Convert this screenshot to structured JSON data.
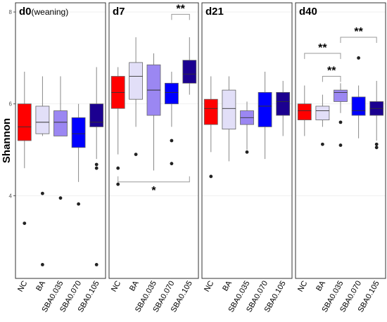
{
  "chart_data": {
    "type": "boxplot",
    "ylabel": "Shannon",
    "ylim": [
      2.2,
      8.2
    ],
    "yticks": [
      4,
      6,
      8
    ],
    "categories": [
      "NC",
      "BA",
      "SBA0.035",
      "SBA0.070",
      "SBA0.105"
    ],
    "colors": {
      "NC": "#ff0000",
      "BA": "#e2dff8",
      "SBA0.035": "#9b87f2",
      "SBA0.070": "#0000ff",
      "SBA0.105": "#1b0090"
    },
    "panels": [
      {
        "title": "d0",
        "subtitle": "(weaning)",
        "boxes": [
          {
            "group": "NC",
            "min": 4.6,
            "q1": 5.2,
            "median": 5.5,
            "q3": 6.0,
            "max": 6.7,
            "outliers": [
              3.4
            ]
          },
          {
            "group": "BA",
            "min": 5.3,
            "q1": 5.35,
            "median": 5.6,
            "q3": 5.95,
            "max": 6.6,
            "outliers": [
              4.05,
              2.5
            ]
          },
          {
            "group": "SBA0.035",
            "min": 5.3,
            "q1": 5.3,
            "median": 5.6,
            "q3": 5.85,
            "max": 6.6,
            "outliers": [
              3.95
            ]
          },
          {
            "group": "SBA0.070",
            "min": 4.3,
            "q1": 5.05,
            "median": 5.35,
            "q3": 5.7,
            "max": 6.0,
            "outliers": [
              3.82
            ]
          },
          {
            "group": "SBA0.105",
            "min": 4.8,
            "q1": 5.5,
            "median": 5.6,
            "q3": 6.0,
            "max": 6.8,
            "outliers": [
              4.68,
              4.6,
              2.5
            ]
          }
        ],
        "annotations": []
      },
      {
        "title": "d7",
        "subtitle": "",
        "boxes": [
          {
            "group": "NC",
            "min": 4.9,
            "q1": 5.9,
            "median": 6.25,
            "q3": 6.6,
            "max": 6.8,
            "outliers": [
              4.6,
              4.25
            ]
          },
          {
            "group": "BA",
            "min": 5.5,
            "q1": 6.1,
            "median": 6.6,
            "q3": 6.9,
            "max": 7.45,
            "outliers": [
              4.9
            ]
          },
          {
            "group": "SBA0.035",
            "min": 4.55,
            "q1": 5.75,
            "median": 6.3,
            "q3": 6.85,
            "max": 7.1,
            "outliers": []
          },
          {
            "group": "SBA0.070",
            "min": 5.5,
            "q1": 6.0,
            "median": 6.25,
            "q3": 6.45,
            "max": 6.7,
            "outliers": [
              5.2,
              4.7
            ]
          },
          {
            "group": "SBA0.105",
            "min": 6.2,
            "q1": 6.45,
            "median": 6.65,
            "q3": 6.95,
            "max": 7.45,
            "outliers": []
          }
        ],
        "annotations": [
          {
            "label": "**",
            "from": 3,
            "to": 4,
            "y": 7.95
          },
          {
            "label": "*",
            "from": 0,
            "to": 4,
            "y": 4.3,
            "below": true
          }
        ]
      },
      {
        "title": "d21",
        "subtitle": "",
        "boxes": [
          {
            "group": "NC",
            "min": 4.95,
            "q1": 5.55,
            "median": 5.9,
            "q3": 6.1,
            "max": 6.6,
            "outliers": [
              4.42
            ]
          },
          {
            "group": "BA",
            "min": 4.75,
            "q1": 5.45,
            "median": 5.9,
            "q3": 6.3,
            "max": 6.6,
            "outliers": []
          },
          {
            "group": "SBA0.035",
            "min": 5.0,
            "q1": 5.55,
            "median": 5.7,
            "q3": 5.85,
            "max": 6.05,
            "outliers": [
              4.95
            ]
          },
          {
            "group": "SBA0.070",
            "min": 4.8,
            "q1": 5.5,
            "median": 5.95,
            "q3": 6.25,
            "max": 6.7,
            "outliers": []
          },
          {
            "group": "SBA0.105",
            "min": 5.3,
            "q1": 5.75,
            "median": 6.05,
            "q3": 6.25,
            "max": 6.5,
            "outliers": []
          }
        ],
        "annotations": []
      },
      {
        "title": "d40",
        "subtitle": "",
        "boxes": [
          {
            "group": "NC",
            "min": 5.3,
            "q1": 5.65,
            "median": 5.85,
            "q3": 6.0,
            "max": 6.4,
            "outliers": []
          },
          {
            "group": "BA",
            "min": 5.5,
            "q1": 5.65,
            "median": 5.85,
            "q3": 5.95,
            "max": 6.2,
            "outliers": [
              5.12
            ]
          },
          {
            "group": "SBA0.035",
            "min": 5.8,
            "q1": 6.05,
            "median": 6.25,
            "q3": 6.3,
            "max": 6.45,
            "outliers": [
              5.6,
              5.1
            ]
          },
          {
            "group": "SBA0.070",
            "min": 5.25,
            "q1": 5.75,
            "median": 5.85,
            "q3": 6.15,
            "max": 6.4,
            "outliers": [
              7.0
            ]
          },
          {
            "group": "SBA0.105",
            "min": 5.2,
            "q1": 5.75,
            "median": 5.9,
            "q3": 6.05,
            "max": 6.5,
            "outliers": [
              5.12,
              5.05
            ]
          }
        ],
        "annotations": [
          {
            "label": "**",
            "from": 0,
            "to": 2,
            "y": 7.1
          },
          {
            "label": "**",
            "from": 1,
            "to": 2,
            "y": 6.6
          },
          {
            "label": "**",
            "from": 2,
            "to": 4,
            "y": 7.45
          }
        ]
      }
    ]
  }
}
